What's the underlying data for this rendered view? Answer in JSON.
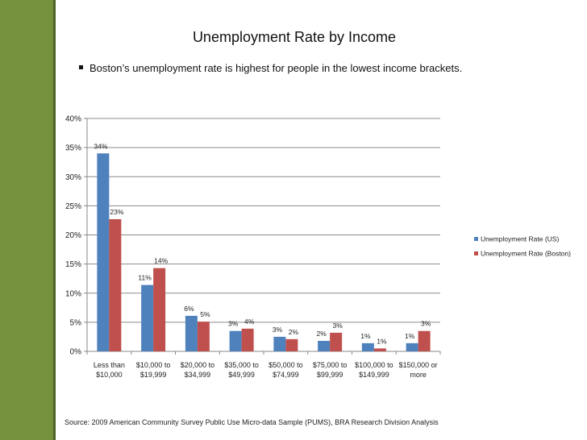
{
  "page": {
    "title": "Unemployment Rate by Income",
    "bullet": "Boston’s unemployment rate is highest for people in the lowest income brackets.",
    "source": "Source: 2009 American Community Survey Public Use Micro-data Sample (PUMS), BRA Research Division Analysis"
  },
  "colors": {
    "sidebar": "#76923c",
    "us": "#4f81bd",
    "boston": "#c0504d"
  },
  "chart_data": {
    "type": "bar",
    "categories": [
      [
        "Less than",
        "$10,000"
      ],
      [
        "$10,000 to",
        "$19,999"
      ],
      [
        "$20,000 to",
        "$34,999"
      ],
      [
        "$35,000 to",
        "$49,999"
      ],
      [
        "$50,000 to",
        "$74,999"
      ],
      [
        "$75,000 to",
        "$99,999"
      ],
      [
        "$100,000 to",
        "$149,999"
      ],
      [
        "$150,000 or",
        "more"
      ]
    ],
    "series": [
      {
        "name": "Unemployment Rate (US)",
        "color": "#4f81bd",
        "values": [
          34.0,
          11.4,
          6.1,
          3.5,
          2.5,
          1.8,
          1.4,
          1.4
        ],
        "labels": [
          "34%",
          "11%",
          "6%",
          "3%",
          "3%",
          "2%",
          "1%",
          "1%"
        ]
      },
      {
        "name": "Unemployment Rate (Boston)",
        "color": "#c0504d",
        "values": [
          22.7,
          14.3,
          5.1,
          3.9,
          2.1,
          3.2,
          0.5,
          3.5
        ],
        "labels": [
          "23%",
          "14%",
          "5%",
          "4%",
          "2%",
          "3%",
          "1%",
          "3%"
        ]
      }
    ],
    "yticks": [
      "0%",
      "5%",
      "10%",
      "15%",
      "20%",
      "25%",
      "30%",
      "35%",
      "40%"
    ],
    "ylim": [
      0,
      40
    ],
    "grid": true,
    "legend_position": "right"
  }
}
